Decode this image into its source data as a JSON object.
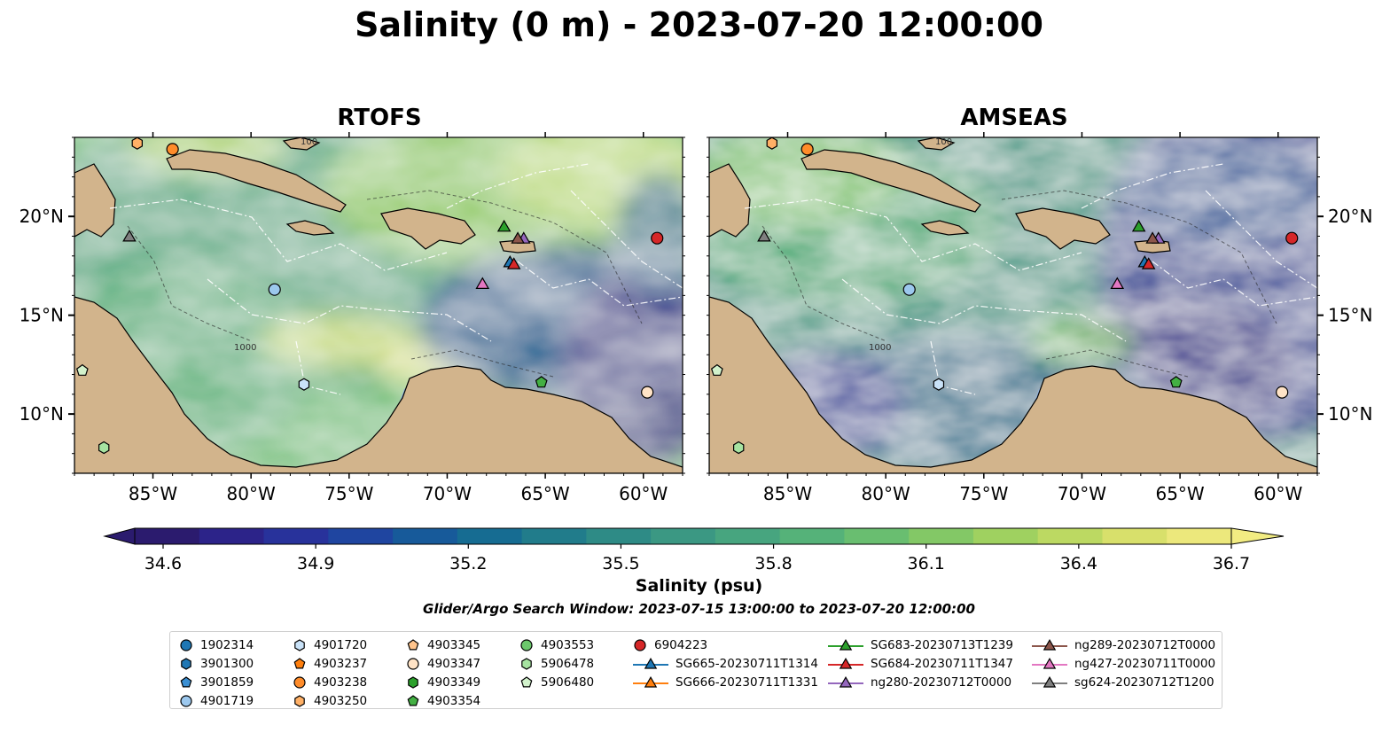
{
  "title": "Salinity (0 m) - 2023-07-20 12:00:00",
  "panels": [
    {
      "name": "RTOFS",
      "model": "rtofs"
    },
    {
      "name": "AMSEAS",
      "model": "amseas"
    }
  ],
  "chart_data": {
    "type": "heatmap",
    "variable": "Salinity (0 m)",
    "lon_range": [
      -89,
      -58
    ],
    "lat_range": [
      7,
      24
    ],
    "x_ticks": [
      {
        "lon": -85,
        "label": "85°W"
      },
      {
        "lon": -80,
        "label": "80°W"
      },
      {
        "lon": -75,
        "label": "75°W"
      },
      {
        "lon": -70,
        "label": "70°W"
      },
      {
        "lon": -65,
        "label": "65°W"
      },
      {
        "lon": -60,
        "label": "60°W"
      }
    ],
    "y_ticks": [
      {
        "lat": 20,
        "label": "20°N"
      },
      {
        "lat": 15,
        "label": "15°N"
      },
      {
        "lat": 10,
        "label": "10°N"
      }
    ],
    "colorbar": {
      "label": "Salinity (psu)",
      "vmin": 34.6,
      "vmax": 36.7,
      "ticks": [
        "34.6",
        "34.9",
        "35.2",
        "35.5",
        "35.8",
        "36.1",
        "36.4",
        "36.7"
      ],
      "colors": [
        "#2b1b6e",
        "#2c2389",
        "#28329b",
        "#1f45a0",
        "#175a9a",
        "#166c92",
        "#217c8b",
        "#2e8b86",
        "#3b9883",
        "#47a57f",
        "#55b279",
        "#69be70",
        "#83c866",
        "#9fd160",
        "#bcd962",
        "#d8e06b",
        "#ece87c"
      ]
    },
    "contour_labels": [
      "100",
      "1000"
    ],
    "search_window": "Glider/Argo Search Window: 2023-07-15 13:00:00 to 2023-07-20 12:00:00",
    "platforms": [
      {
        "id": "1902314",
        "marker": "circle",
        "color": "#1f77b4"
      },
      {
        "id": "3901300",
        "marker": "hexagon",
        "color": "#1f77b4"
      },
      {
        "id": "3901859",
        "marker": "pentagon",
        "color": "#3a8fd3"
      },
      {
        "id": "4901719",
        "marker": "circle",
        "color": "#9cc8ee",
        "lon": -78.8,
        "lat": 16.3
      },
      {
        "id": "4901720",
        "marker": "hexagon",
        "color": "#c9e2f8",
        "lon": -77.3,
        "lat": 11.5
      },
      {
        "id": "4903237",
        "marker": "pentagon",
        "color": "#ff7f0e"
      },
      {
        "id": "4903238",
        "marker": "circle",
        "color": "#ff8c2a",
        "lon": -84,
        "lat": 23.4
      },
      {
        "id": "4903250",
        "marker": "hexagon",
        "color": "#ffb066",
        "lon": -85.8,
        "lat": 23.7
      },
      {
        "id": "4903345",
        "marker": "pentagon",
        "color": "#ffc48c"
      },
      {
        "id": "4903347",
        "marker": "circle",
        "color": "#ffe3c6",
        "lon": -59.8,
        "lat": 11.1
      },
      {
        "id": "4903349",
        "marker": "hexagon",
        "color": "#2ca02c"
      },
      {
        "id": "4903354",
        "marker": "pentagon",
        "color": "#43b043",
        "lon": -65.2,
        "lat": 11.6
      },
      {
        "id": "4903553",
        "marker": "circle",
        "color": "#6cc86c"
      },
      {
        "id": "5906478",
        "marker": "hexagon",
        "color": "#a6e3a1",
        "lon": -87.5,
        "lat": 8.3
      },
      {
        "id": "5906480",
        "marker": "pentagon",
        "color": "#d2f2cc",
        "lon": -88.6,
        "lat": 12.2
      },
      {
        "id": "6904223",
        "marker": "circle",
        "color": "#d62728",
        "lon": -59.3,
        "lat": 18.9
      },
      {
        "id": "SG665-20230711T1314",
        "marker": "triangle",
        "color": "#1f77b4",
        "line": true,
        "lon": -66.8,
        "lat": 17.7
      },
      {
        "id": "SG666-20230711T1331",
        "marker": "triangle",
        "color": "#ff7f0e",
        "line": true
      },
      {
        "id": "SG683-20230713T1239",
        "marker": "triangle",
        "color": "#2ca02c",
        "line": true,
        "lon": -67.1,
        "lat": 19.5
      },
      {
        "id": "SG684-20230711T1347",
        "marker": "triangle",
        "color": "#d62728",
        "line": true,
        "lon": -66.6,
        "lat": 17.6
      },
      {
        "id": "ng280-20230712T0000",
        "marker": "triangle",
        "color": "#9467bd",
        "line": true,
        "lon": -66.1,
        "lat": 18.9
      },
      {
        "id": "ng289-20230712T0000",
        "marker": "triangle",
        "color": "#8c564b",
        "line": true,
        "lon": -66.4,
        "lat": 18.9
      },
      {
        "id": "ng427-20230711T0000",
        "marker": "triangle",
        "color": "#e377c2",
        "line": true,
        "lon": -68.2,
        "lat": 16.6
      },
      {
        "id": "sg624-20230712T1200",
        "marker": "triangle",
        "color": "#7f7f7f",
        "line": true,
        "lon": -86.2,
        "lat": 19
      }
    ]
  }
}
